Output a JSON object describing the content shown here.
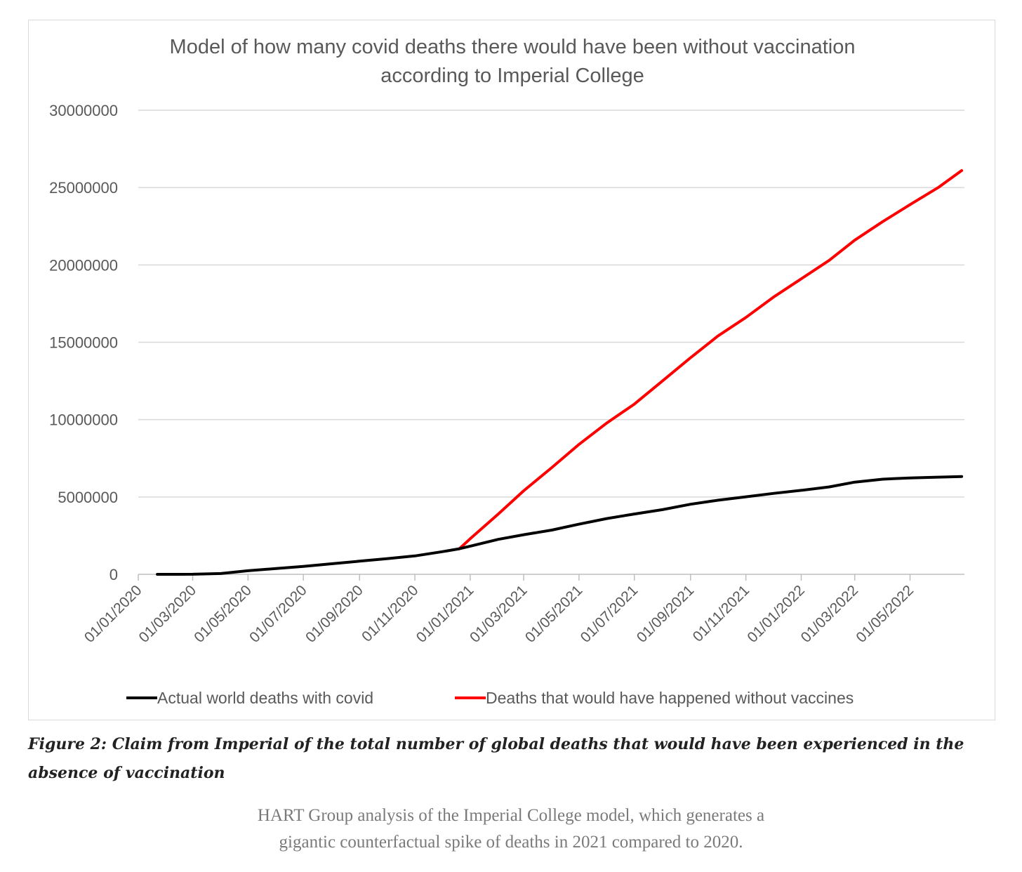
{
  "chart_data": {
    "type": "line",
    "title": [
      "Model of how many covid deaths there would have been without vaccination",
      "according to Imperial College"
    ],
    "xlabel": "",
    "ylabel": "",
    "ylim": [
      0,
      30000000
    ],
    "y_ticks": [
      "0",
      "5000000",
      "10000000",
      "15000000",
      "20000000",
      "25000000",
      "30000000"
    ],
    "x_ticks": [
      "01/01/2020",
      "01/03/2020",
      "01/05/2020",
      "01/07/2020",
      "01/09/2020",
      "01/11/2020",
      "01/01/2021",
      "01/03/2021",
      "01/05/2021",
      "01/07/2021",
      "01/09/2021",
      "01/11/2021",
      "01/01/2022",
      "01/03/2022",
      "01/05/2022"
    ],
    "grid": "horizontal",
    "legend_position": "bottom",
    "series": [
      {
        "name": "Actual world deaths with covid",
        "color": "#000000",
        "points": [
          [
            "2020-01-22",
            0
          ],
          [
            "2020-03-01",
            3000
          ],
          [
            "2020-04-01",
            50000
          ],
          [
            "2020-05-01",
            230000
          ],
          [
            "2020-06-01",
            370000
          ],
          [
            "2020-07-01",
            510000
          ],
          [
            "2020-08-01",
            680000
          ],
          [
            "2020-09-01",
            850000
          ],
          [
            "2020-10-01",
            1010000
          ],
          [
            "2020-11-01",
            1190000
          ],
          [
            "2020-12-01",
            1460000
          ],
          [
            "2020-12-20",
            1650000
          ],
          [
            "2021-01-01",
            1820000
          ],
          [
            "2021-02-01",
            2260000
          ],
          [
            "2021-03-01",
            2560000
          ],
          [
            "2021-04-01",
            2860000
          ],
          [
            "2021-05-01",
            3240000
          ],
          [
            "2021-06-01",
            3610000
          ],
          [
            "2021-07-01",
            3900000
          ],
          [
            "2021-08-01",
            4180000
          ],
          [
            "2021-09-01",
            4530000
          ],
          [
            "2021-10-01",
            4790000
          ],
          [
            "2021-11-01",
            5010000
          ],
          [
            "2021-12-01",
            5230000
          ],
          [
            "2022-01-01",
            5430000
          ],
          [
            "2022-02-01",
            5650000
          ],
          [
            "2022-03-01",
            5960000
          ],
          [
            "2022-04-01",
            6150000
          ],
          [
            "2022-05-01",
            6230000
          ],
          [
            "2022-06-01",
            6280000
          ],
          [
            "2022-06-27",
            6320000
          ]
        ]
      },
      {
        "name": "Deaths that would have happened without vaccines",
        "color": "#ff0000",
        "points": [
          [
            "2020-12-20",
            1650000
          ],
          [
            "2021-01-01",
            2300000
          ],
          [
            "2021-02-01",
            3900000
          ],
          [
            "2021-03-01",
            5400000
          ],
          [
            "2021-04-01",
            6900000
          ],
          [
            "2021-05-01",
            8400000
          ],
          [
            "2021-06-01",
            9800000
          ],
          [
            "2021-07-01",
            11000000
          ],
          [
            "2021-08-01",
            12500000
          ],
          [
            "2021-09-01",
            14000000
          ],
          [
            "2021-10-01",
            15400000
          ],
          [
            "2021-11-01",
            16600000
          ],
          [
            "2021-12-01",
            17900000
          ],
          [
            "2022-01-01",
            19100000
          ],
          [
            "2022-02-01",
            20300000
          ],
          [
            "2022-03-01",
            21600000
          ],
          [
            "2022-04-01",
            22800000
          ],
          [
            "2022-05-01",
            23900000
          ],
          [
            "2022-06-01",
            25000000
          ],
          [
            "2022-06-27",
            26100000
          ]
        ]
      }
    ]
  },
  "caption": "Figure 2: Claim from Imperial of the total number of global deaths that would have been experienced in the absence of vaccination",
  "subcaption": {
    "line1": "HART Group analysis of the Imperial College model, which generates a",
    "line2": "gigantic counterfactual spike of deaths in 2021 compared to 2020."
  }
}
